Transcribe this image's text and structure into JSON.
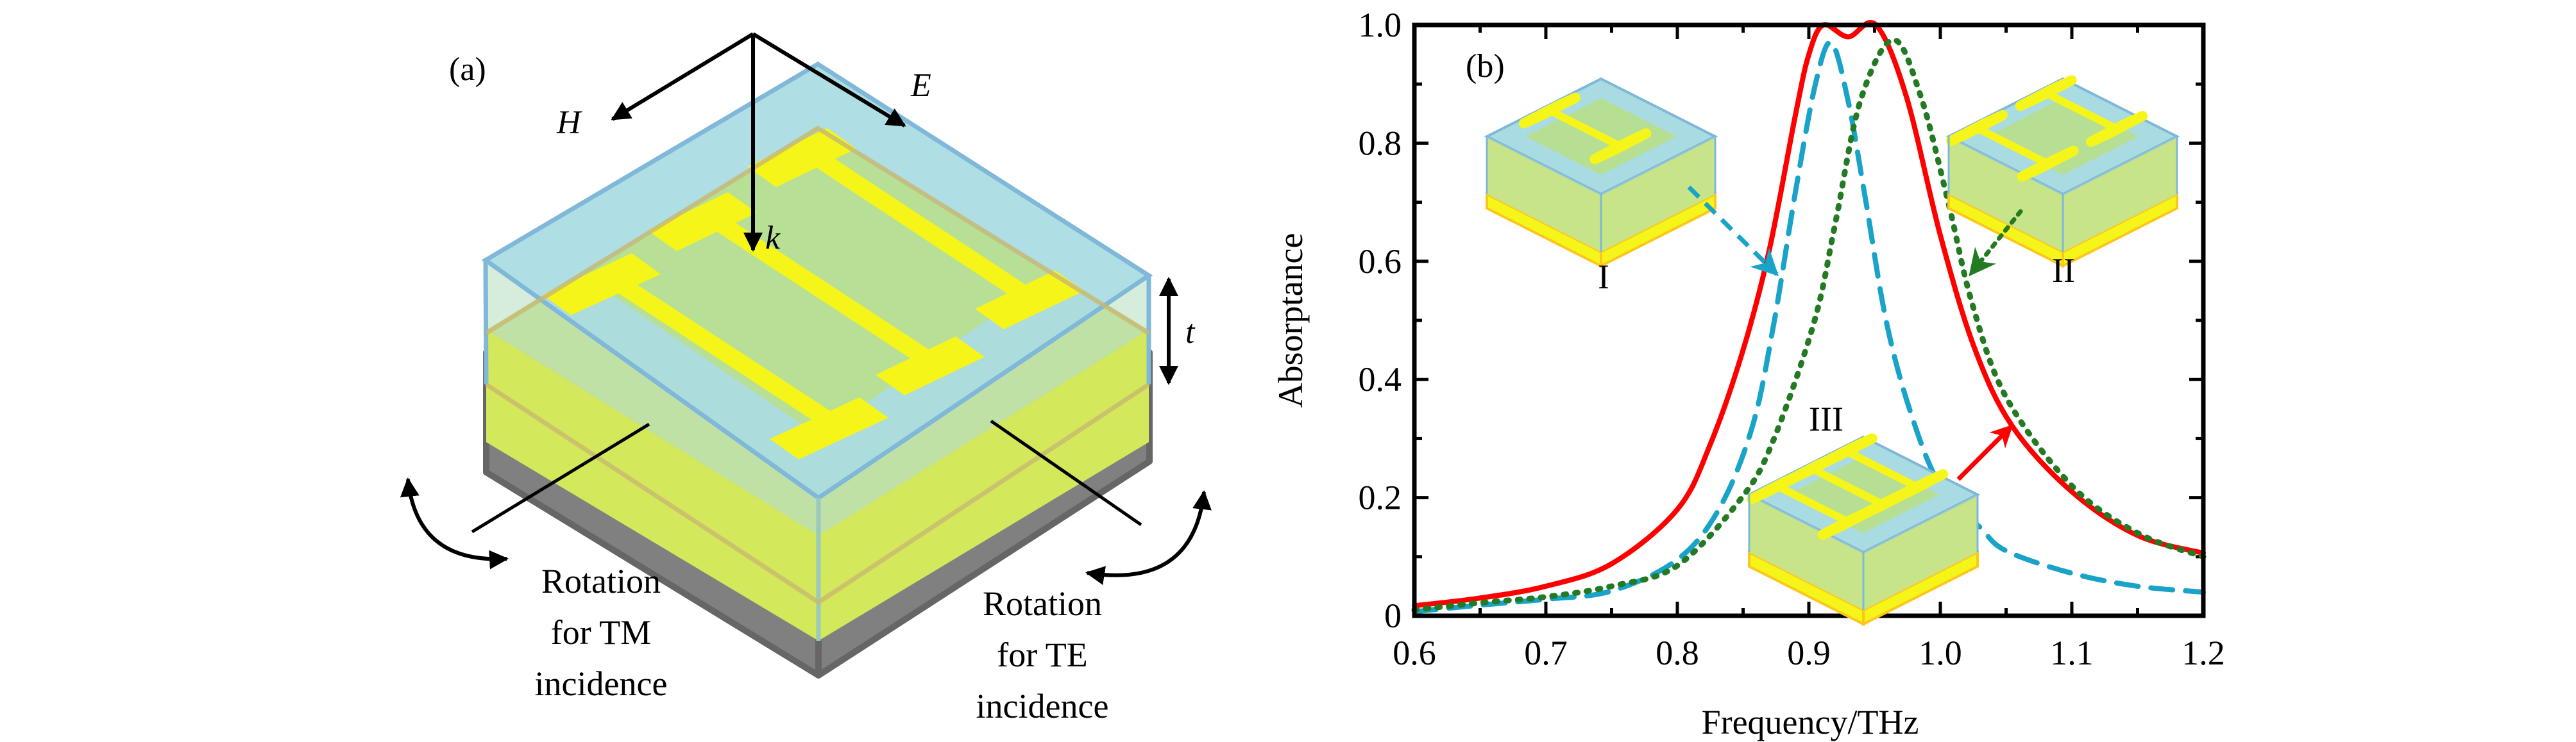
{
  "panel_a": {
    "label": "(a)",
    "vectors": {
      "h": "H",
      "e": "E",
      "k": "k"
    },
    "thickness_label": "t",
    "tm_caption": [
      "Rotation",
      "for TM",
      "incidence"
    ],
    "te_caption": [
      "Rotation",
      "for TE",
      "incidence"
    ],
    "colors": {
      "dielectric": "#a9dbe3",
      "dielectric_edge": "#7fb8d8",
      "gold": "#f5f51a",
      "ground_gold": "#ffd21a",
      "substrate": "#808080",
      "substrate_edge": "#666666"
    }
  },
  "panel_b": {
    "label": "(b)",
    "insets": [
      {
        "label": "I",
        "resonators": 1
      },
      {
        "label": "II",
        "resonators": 2
      },
      {
        "label": "III",
        "resonators": 3
      }
    ]
  },
  "chart_data": {
    "type": "line",
    "title": "",
    "xlabel": "Frequency/THz",
    "ylabel": "Absorptance",
    "xlim": [
      0.6,
      1.2
    ],
    "ylim": [
      0,
      1.0
    ],
    "xticks": [
      "0.6",
      "0.7",
      "0.8",
      "0.9",
      "1.0",
      "1.1",
      "1.2"
    ],
    "yticks": [
      "0",
      "0.2",
      "0.4",
      "0.6",
      "0.8",
      "1.0"
    ],
    "grid": false,
    "series": [
      {
        "name": "III",
        "style": "solid",
        "color": "#ff0000",
        "x": [
          0.6,
          0.65,
          0.7,
          0.75,
          0.8,
          0.825,
          0.85,
          0.87,
          0.89,
          0.9,
          0.911,
          0.93,
          0.951,
          0.974,
          1.0,
          1.026,
          1.055,
          1.1,
          1.15,
          1.2
        ],
        "y": [
          0.017,
          0.03,
          0.05,
          0.088,
          0.18,
          0.29,
          0.45,
          0.62,
          0.85,
          0.95,
          1.0,
          0.98,
          1.0,
          0.88,
          0.644,
          0.453,
          0.32,
          0.21,
          0.136,
          0.106
        ]
      },
      {
        "name": "I",
        "style": "dashed",
        "color": "#1aa3c8",
        "x": [
          0.6,
          0.65,
          0.7,
          0.75,
          0.8,
          0.832,
          0.857,
          0.873,
          0.89,
          0.905,
          0.917,
          0.93,
          0.943,
          0.959,
          0.978,
          1.0,
          1.03,
          1.05,
          1.1,
          1.15,
          1.2
        ],
        "y": [
          0.007,
          0.018,
          0.028,
          0.042,
          0.095,
          0.182,
          0.32,
          0.49,
          0.72,
          0.9,
          0.97,
          0.87,
          0.706,
          0.497,
          0.34,
          0.22,
          0.15,
          0.11,
          0.072,
          0.05,
          0.04
        ]
      },
      {
        "name": "II",
        "style": "dotted",
        "color": "#237a23",
        "x": [
          0.6,
          0.65,
          0.7,
          0.75,
          0.8,
          0.849,
          0.873,
          0.904,
          0.92,
          0.939,
          0.964,
          0.985,
          1.006,
          1.024,
          1.05,
          1.1,
          1.15,
          1.2
        ],
        "y": [
          0.01,
          0.022,
          0.032,
          0.05,
          0.085,
          0.2,
          0.297,
          0.497,
          0.663,
          0.87,
          0.975,
          0.88,
          0.7,
          0.53,
          0.37,
          0.22,
          0.14,
          0.1
        ]
      }
    ]
  }
}
